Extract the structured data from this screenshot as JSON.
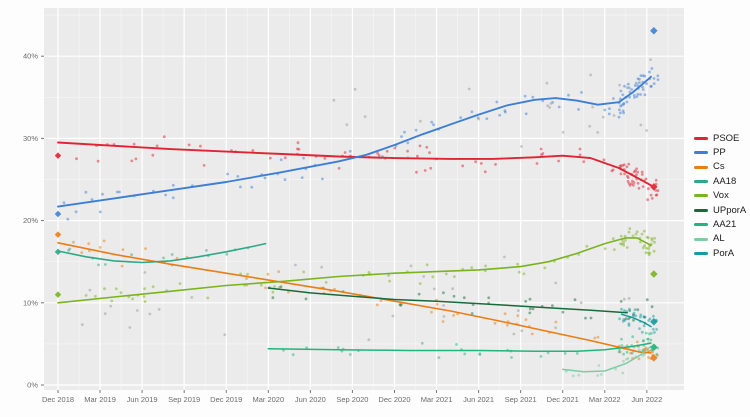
{
  "chart_data": {
    "type": "scatter",
    "subtype": "polling-trend-lines-with-scatter",
    "title": "",
    "xlabel": "",
    "ylabel": "",
    "x_axis": {
      "tick_labels": [
        "Dec 2018",
        "Mar 2019",
        "Jun 2019",
        "Sep 2019",
        "Dec 2019",
        "Mar 2020",
        "Jun 2020",
        "Sep 2020",
        "Dec 2020",
        "Mar 2021",
        "Jun 2021",
        "Sep 2021",
        "Dec 2021",
        "Mar 2022",
        "Jun 2022"
      ],
      "tick_months": [
        0,
        3,
        6,
        9,
        12,
        15,
        18,
        21,
        24,
        27,
        30,
        33,
        36,
        39,
        42
      ],
      "range_months": [
        -1,
        44.6
      ]
    },
    "y_axis": {
      "tick_labels": [
        "0%",
        "10%",
        "20%",
        "30%",
        "40%"
      ],
      "tick_values": [
        0,
        10,
        20,
        30,
        40
      ],
      "minor_values": [
        5,
        15,
        25,
        35,
        45
      ],
      "range": [
        0,
        45.9
      ],
      "grid": true
    },
    "legend_position": "right-outside",
    "panel_background": "#ebebeb",
    "grid_major_color": "#ffffff",
    "grid_minor_color": "rgba(255,255,255,0.55)",
    "tick_text_color": "#6b6b6b",
    "series": [
      {
        "name": "PSOE",
        "color": "#e02433",
        "line_width": 1.9,
        "trend": [
          [
            0,
            29.5
          ],
          [
            4,
            29.1
          ],
          [
            8,
            28.7
          ],
          [
            12,
            28.4
          ],
          [
            16,
            28.1
          ],
          [
            20,
            27.8
          ],
          [
            24,
            27.6
          ],
          [
            28,
            27.5
          ],
          [
            31,
            27.5
          ],
          [
            34,
            27.7
          ],
          [
            36,
            27.9
          ],
          [
            38,
            27.6
          ],
          [
            40,
            26.4
          ],
          [
            41,
            25.5
          ],
          [
            42.3,
            24.3
          ]
        ],
        "scatter": {
          "seed": 11,
          "count": 60,
          "t_from": 0.3,
          "t_to": 40.5,
          "spread": 2.4
        },
        "burst": {
          "seed": 12,
          "count": 45,
          "t_from": 40.0,
          "t_to": 42.8,
          "spread": 2.2
        }
      },
      {
        "name": "PP",
        "color": "#3d7fd6",
        "line_width": 1.9,
        "trend": [
          [
            0,
            21.7
          ],
          [
            4,
            22.7
          ],
          [
            8,
            23.7
          ],
          [
            12,
            24.7
          ],
          [
            16,
            25.9
          ],
          [
            20,
            27.2
          ],
          [
            22,
            28.0
          ],
          [
            24,
            29.2
          ],
          [
            26,
            30.5
          ],
          [
            28,
            31.7
          ],
          [
            30,
            32.9
          ],
          [
            32,
            34.0
          ],
          [
            34,
            34.7
          ],
          [
            35.5,
            34.9
          ],
          [
            37,
            34.6
          ],
          [
            38.5,
            34.1
          ],
          [
            40,
            34.4
          ],
          [
            41,
            35.6
          ],
          [
            42.3,
            37.5
          ]
        ],
        "scatter": {
          "seed": 21,
          "count": 60,
          "t_from": 0.3,
          "t_to": 40.5,
          "spread": 2.4
        },
        "burst": {
          "seed": 22,
          "count": 50,
          "t_from": 40.0,
          "t_to": 42.8,
          "spread": 2.6
        }
      },
      {
        "name": "Cs",
        "color": "#ec7d14",
        "line_width": 1.6,
        "trend": [
          [
            0,
            17.3
          ],
          [
            4,
            15.9
          ],
          [
            8,
            14.7
          ],
          [
            12,
            13.6
          ],
          [
            16,
            12.5
          ],
          [
            20,
            11.4
          ],
          [
            24,
            10.2
          ],
          [
            28,
            9.0
          ],
          [
            32,
            7.6
          ],
          [
            35,
            6.5
          ],
          [
            38,
            5.4
          ],
          [
            40,
            4.6
          ],
          [
            41.5,
            4.0
          ],
          [
            42.3,
            3.9
          ]
        ],
        "scatter": {
          "seed": 31,
          "count": 45,
          "t_from": 0.3,
          "t_to": 40.0,
          "spread": 1.8
        },
        "burst": {
          "seed": 32,
          "count": 25,
          "t_from": 40.0,
          "t_to": 42.8,
          "spread": 1.4
        }
      },
      {
        "name": "AA18",
        "color": "#2ea886",
        "line_width": 1.6,
        "trend": [
          [
            0,
            16.3
          ],
          [
            2,
            15.6
          ],
          [
            4,
            15.1
          ],
          [
            6,
            14.9
          ],
          [
            8,
            15.1
          ],
          [
            10,
            15.6
          ],
          [
            12,
            16.2
          ],
          [
            14,
            16.9
          ],
          [
            14.8,
            17.2
          ]
        ],
        "scatter": {
          "seed": 41,
          "count": 14,
          "t_from": 0.3,
          "t_to": 14.8,
          "spread": 1.5
        }
      },
      {
        "name": "Vox",
        "color": "#7ab41d",
        "line_width": 1.6,
        "trend": [
          [
            0,
            10.0
          ],
          [
            4,
            10.7
          ],
          [
            8,
            11.4
          ],
          [
            12,
            12.1
          ],
          [
            16,
            12.6
          ],
          [
            20,
            13.2
          ],
          [
            24,
            13.6
          ],
          [
            27,
            13.8
          ],
          [
            30,
            14.0
          ],
          [
            33,
            14.4
          ],
          [
            35,
            15.0
          ],
          [
            37,
            16.0
          ],
          [
            39,
            17.2
          ],
          [
            40.5,
            17.9
          ],
          [
            41.3,
            17.9
          ],
          [
            42.3,
            17.0
          ]
        ],
        "scatter": {
          "seed": 51,
          "count": 50,
          "t_from": 0.3,
          "t_to": 40.5,
          "spread": 1.7
        },
        "burst": {
          "seed": 52,
          "count": 35,
          "t_from": 40.0,
          "t_to": 42.8,
          "spread": 1.8
        }
      },
      {
        "name": "UPporA",
        "color": "#176b3a",
        "line_width": 1.5,
        "trend": [
          [
            15,
            11.8
          ],
          [
            18,
            11.2
          ],
          [
            21,
            10.8
          ],
          [
            24,
            10.4
          ],
          [
            27,
            10.2
          ],
          [
            30,
            9.9
          ],
          [
            33,
            9.6
          ],
          [
            36,
            9.3
          ],
          [
            38,
            9.1
          ],
          [
            40.6,
            8.8
          ]
        ],
        "scatter": {
          "seed": 61,
          "count": 28,
          "t_from": 15,
          "t_to": 40.5,
          "spread": 1.6
        },
        "burst": {
          "seed": 62,
          "count": 12,
          "t_from": 40.0,
          "t_to": 42.5,
          "spread": 1.8
        }
      },
      {
        "name": "AA21",
        "color": "#21b57d",
        "line_width": 1.5,
        "trend": [
          [
            15,
            4.4
          ],
          [
            20,
            4.3
          ],
          [
            25,
            4.2
          ],
          [
            30,
            4.2
          ],
          [
            34,
            4.1
          ],
          [
            37,
            4.1
          ],
          [
            39,
            4.3
          ],
          [
            41,
            4.7
          ],
          [
            42.3,
            5.1
          ]
        ],
        "scatter": {
          "seed": 71,
          "count": 22,
          "t_from": 15,
          "t_to": 40.5,
          "spread": 1.2
        },
        "burst": {
          "seed": 72,
          "count": 25,
          "t_from": 40.0,
          "t_to": 42.8,
          "spread": 1.6
        }
      },
      {
        "name": "AL",
        "color": "#7ecba4",
        "line_width": 1.5,
        "trend": [
          [
            36,
            1.9
          ],
          [
            37.5,
            1.6
          ],
          [
            39,
            1.7
          ],
          [
            40.5,
            2.6
          ],
          [
            41.5,
            3.6
          ],
          [
            42.3,
            4.7
          ]
        ],
        "scatter": {
          "seed": 81,
          "count": 8,
          "t_from": 36,
          "t_to": 40.5,
          "spread": 1.0
        },
        "burst": {
          "seed": 82,
          "count": 12,
          "t_from": 40.0,
          "t_to": 42.8,
          "spread": 1.5
        }
      },
      {
        "name": "PorA",
        "color": "#159ba0",
        "line_width": 1.5,
        "trend": [
          [
            40.2,
            8.6
          ],
          [
            41,
            8.2
          ],
          [
            41.8,
            7.6
          ],
          [
            42.3,
            7.1
          ]
        ],
        "burst": {
          "seed": 92,
          "count": 30,
          "t_from": 40.0,
          "t_to": 42.8,
          "spread": 1.6
        }
      }
    ],
    "other_points": [
      {
        "name": "others-low",
        "color": "#999999",
        "trend": [
          [
            0,
            11
          ],
          [
            42.5,
            11
          ]
        ],
        "hidden_line": true,
        "scatter": {
          "seed": 101,
          "count": 30,
          "t_from": 0.5,
          "t_to": 42.5,
          "spread": 7.0
        }
      },
      {
        "name": "others-high",
        "color": "#999999",
        "trend": [
          [
            18,
            32
          ],
          [
            42.6,
            34
          ]
        ],
        "hidden_line": true,
        "scatter": {
          "seed": 102,
          "count": 25,
          "t_from": 18,
          "t_to": 42.6,
          "spread": 8.0
        }
      }
    ],
    "election_results": [
      {
        "date": "Dec 2018",
        "t": 0,
        "marker": "diamond",
        "size": 6.5,
        "results": [
          {
            "party": "PSOE",
            "value": 27.9
          },
          {
            "party": "PP",
            "value": 20.8
          },
          {
            "party": "Cs",
            "value": 18.3
          },
          {
            "party": "AA18",
            "value": 16.2
          },
          {
            "party": "Vox",
            "value": 11.0
          }
        ]
      },
      {
        "date": "Jun 2022",
        "t": 42.5,
        "marker": "diamond",
        "size": 7.5,
        "results": [
          {
            "party": "PP",
            "value": 43.1
          },
          {
            "party": "PSOE",
            "value": 24.1
          },
          {
            "party": "Vox",
            "value": 13.5
          },
          {
            "party": "PorA",
            "value": 7.7
          },
          {
            "party": "AA21",
            "value": 4.6
          },
          {
            "party": "Cs",
            "value": 3.3
          }
        ]
      }
    ],
    "legend": [
      "PSOE",
      "PP",
      "Cs",
      "AA18",
      "Vox",
      "UPporA",
      "AA21",
      "AL",
      "PorA"
    ]
  }
}
